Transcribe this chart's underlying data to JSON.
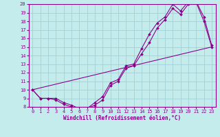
{
  "bg_color": "#c5eced",
  "grid_color": "#a0d0d4",
  "line_color": "#8b008b",
  "spine_color": "#8b008b",
  "xlim": [
    -0.5,
    23.5
  ],
  "ylim": [
    8,
    20
  ],
  "xticks": [
    0,
    1,
    2,
    3,
    4,
    5,
    6,
    7,
    8,
    9,
    10,
    11,
    12,
    13,
    14,
    15,
    16,
    17,
    18,
    19,
    20,
    21,
    22,
    23
  ],
  "yticks": [
    8,
    9,
    10,
    11,
    12,
    13,
    14,
    15,
    16,
    17,
    18,
    19,
    20
  ],
  "xlabel": "Windchill (Refroidissement éolien,°C)",
  "line1_x": [
    0,
    1,
    2,
    3,
    4,
    5,
    6,
    7,
    8,
    9,
    10,
    11,
    12,
    13,
    14,
    15,
    16,
    17,
    18,
    19,
    20,
    21,
    22,
    23
  ],
  "line1_y": [
    10.0,
    9.0,
    9.0,
    9.0,
    8.5,
    8.2,
    7.8,
    7.8,
    8.5,
    9.2,
    10.8,
    11.2,
    12.8,
    13.0,
    14.8,
    16.5,
    17.8,
    18.5,
    20.0,
    19.2,
    20.3,
    20.3,
    18.5,
    15.2
  ],
  "line2_x": [
    0,
    1,
    2,
    3,
    4,
    5,
    6,
    7,
    8,
    9,
    10,
    11,
    12,
    13,
    14,
    15,
    16,
    17,
    18,
    19,
    20,
    21,
    22,
    23
  ],
  "line2_y": [
    10.0,
    9.0,
    9.0,
    8.8,
    8.3,
    8.0,
    7.8,
    7.8,
    8.2,
    8.8,
    10.5,
    11.0,
    12.5,
    12.8,
    14.2,
    15.5,
    17.2,
    18.2,
    19.5,
    18.8,
    20.0,
    20.2,
    18.0,
    15.0
  ],
  "line3_x": [
    0,
    23
  ],
  "line3_y": [
    10.0,
    15.0
  ],
  "tick_fontsize": 5,
  "xlabel_fontsize": 5.5,
  "lw": 0.8,
  "ms": 2.0
}
